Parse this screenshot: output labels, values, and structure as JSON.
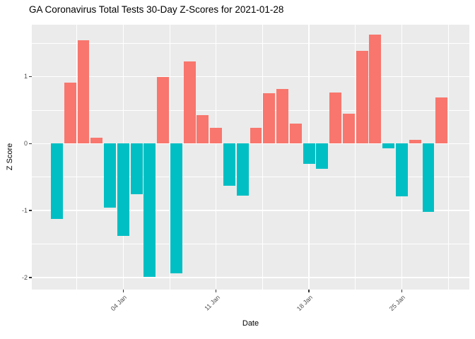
{
  "chart_data": {
    "type": "bar",
    "title": "GA Coronavirus Total Tests 30-Day Z-Scores for 2021-01-28",
    "xlabel": "Date",
    "ylabel": "Z Score",
    "dates": [
      "2020-12-30",
      "2020-12-31",
      "2021-01-01",
      "2021-01-02",
      "2021-01-03",
      "2021-01-04",
      "2021-01-05",
      "2021-01-06",
      "2021-01-07",
      "2021-01-08",
      "2021-01-09",
      "2021-01-10",
      "2021-01-11",
      "2021-01-12",
      "2021-01-13",
      "2021-01-14",
      "2021-01-15",
      "2021-01-16",
      "2021-01-17",
      "2021-01-18",
      "2021-01-19",
      "2021-01-20",
      "2021-01-21",
      "2021-01-22",
      "2021-01-23",
      "2021-01-24",
      "2021-01-25",
      "2021-01-26",
      "2021-01-27",
      "2021-01-28"
    ],
    "values": [
      -1.13,
      0.91,
      1.54,
      0.09,
      -0.96,
      -1.38,
      -0.76,
      -1.99,
      0.99,
      -1.94,
      1.23,
      0.43,
      0.24,
      -0.63,
      -0.78,
      0.24,
      0.75,
      0.82,
      0.3,
      -0.3,
      -0.38,
      0.76,
      0.45,
      1.38,
      1.63,
      -0.07,
      -0.79,
      0.06,
      -1.02,
      0.69
    ],
    "x_ticks": [
      {
        "label": "04 Jan",
        "day": 5
      },
      {
        "label": "11 Jan",
        "day": 12
      },
      {
        "label": "18 Jan",
        "day": 19
      },
      {
        "label": "25 Jan",
        "day": 26
      }
    ],
    "x_minor_days": [
      1.5,
      8.5,
      15.5,
      22.5,
      29.5
    ],
    "y_ticks": [
      {
        "label": "1",
        "value": 1
      },
      {
        "label": "0",
        "value": 0
      },
      {
        "label": "-1",
        "value": -1
      },
      {
        "label": "-2",
        "value": -2
      }
    ],
    "y_minor_ticks": [
      1.5,
      0.5,
      -0.5,
      -1.5
    ],
    "ylim": [
      -2.18,
      1.78
    ],
    "grid": true,
    "legend": "none",
    "colors": {
      "positive_bar": "#F8766D",
      "negative_bar": "#00BFC4",
      "panel_bg": "#EBEBEB",
      "grid": "#FFFFFF",
      "axis_text": "#4D4D4D",
      "title_text": "#000000",
      "tick_mark": "#333333"
    }
  }
}
